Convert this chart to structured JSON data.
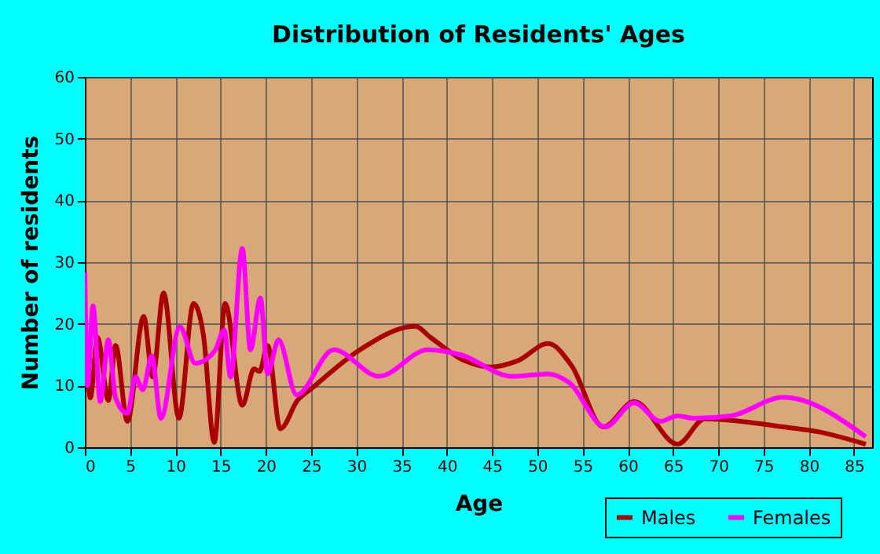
{
  "chart_data": {
    "type": "line",
    "title": "Distribution of Residents' Ages",
    "xlabel": "Age",
    "ylabel": "Number of residents",
    "xlim": [
      0,
      87
    ],
    "xticks": [
      0,
      5,
      10,
      15,
      20,
      25,
      30,
      35,
      40,
      45,
      50,
      55,
      60,
      65,
      70,
      75,
      80,
      85
    ],
    "ylim": [
      0,
      60
    ],
    "yticks": [
      0,
      10,
      20,
      30,
      40,
      50,
      60
    ],
    "grid": true,
    "legend": "bottom right",
    "marker": "none",
    "line_style": "solid",
    "series": [
      {
        "name": "Males",
        "color": "#aa0000",
        "x": [
          0.2,
          0.6,
          1.4,
          2.6,
          3.4,
          4.7,
          6.5,
          7.5,
          8.7,
          10.4,
          12,
          13.1,
          14.3,
          15.5,
          17.4,
          18.7,
          19.3,
          20.2,
          21.6,
          23.5,
          25.2,
          30.4,
          36.5,
          38.2,
          42,
          44.8,
          47.8,
          51.2,
          53.8,
          57.3,
          60.7,
          65.5,
          68.5,
          72.5,
          77.2,
          81.1,
          86.3
        ],
        "values": [
          17,
          8,
          17.8,
          7.6,
          16.5,
          4.2,
          21.2,
          11.4,
          25,
          4.7,
          23.3,
          18.2,
          0.8,
          23.3,
          6.8,
          12.7,
          12.3,
          16.5,
          3,
          7.6,
          9.7,
          15.8,
          19.6,
          17.8,
          14,
          13,
          14,
          16.8,
          13.2,
          3.3,
          7.4,
          0.5,
          4.6,
          4.2,
          3.3,
          2.5,
          0.5
        ]
      },
      {
        "name": "Females",
        "color": "#ff00ff",
        "x": [
          0,
          0.3,
          0.9,
          1.7,
          2.6,
          3.4,
          4.7,
          5.6,
          6.4,
          7.4,
          8.4,
          10.5,
          12.2,
          14.4,
          15.4,
          16.1,
          17.4,
          18.3,
          19.4,
          20.2,
          21.4,
          23.4,
          27.5,
          32.5,
          37.9,
          41.5,
          47.2,
          51.2,
          53.5,
          57.5,
          60.7,
          63.6,
          65.5,
          67.3,
          71.4,
          77.2,
          86.3
        ],
        "values": [
          28.4,
          10,
          22.9,
          7.4,
          17.4,
          8,
          5.5,
          11.4,
          9.3,
          14.8,
          4.7,
          19.5,
          13.6,
          15.7,
          19,
          11.4,
          32.2,
          15.8,
          24.2,
          11.9,
          17.4,
          8.5,
          15.8,
          11.5,
          15.8,
          15,
          11.5,
          11.9,
          10.5,
          3.3,
          7.2,
          4.2,
          5.1,
          4.7,
          5.1,
          8.1,
          1.7
        ]
      }
    ]
  }
}
